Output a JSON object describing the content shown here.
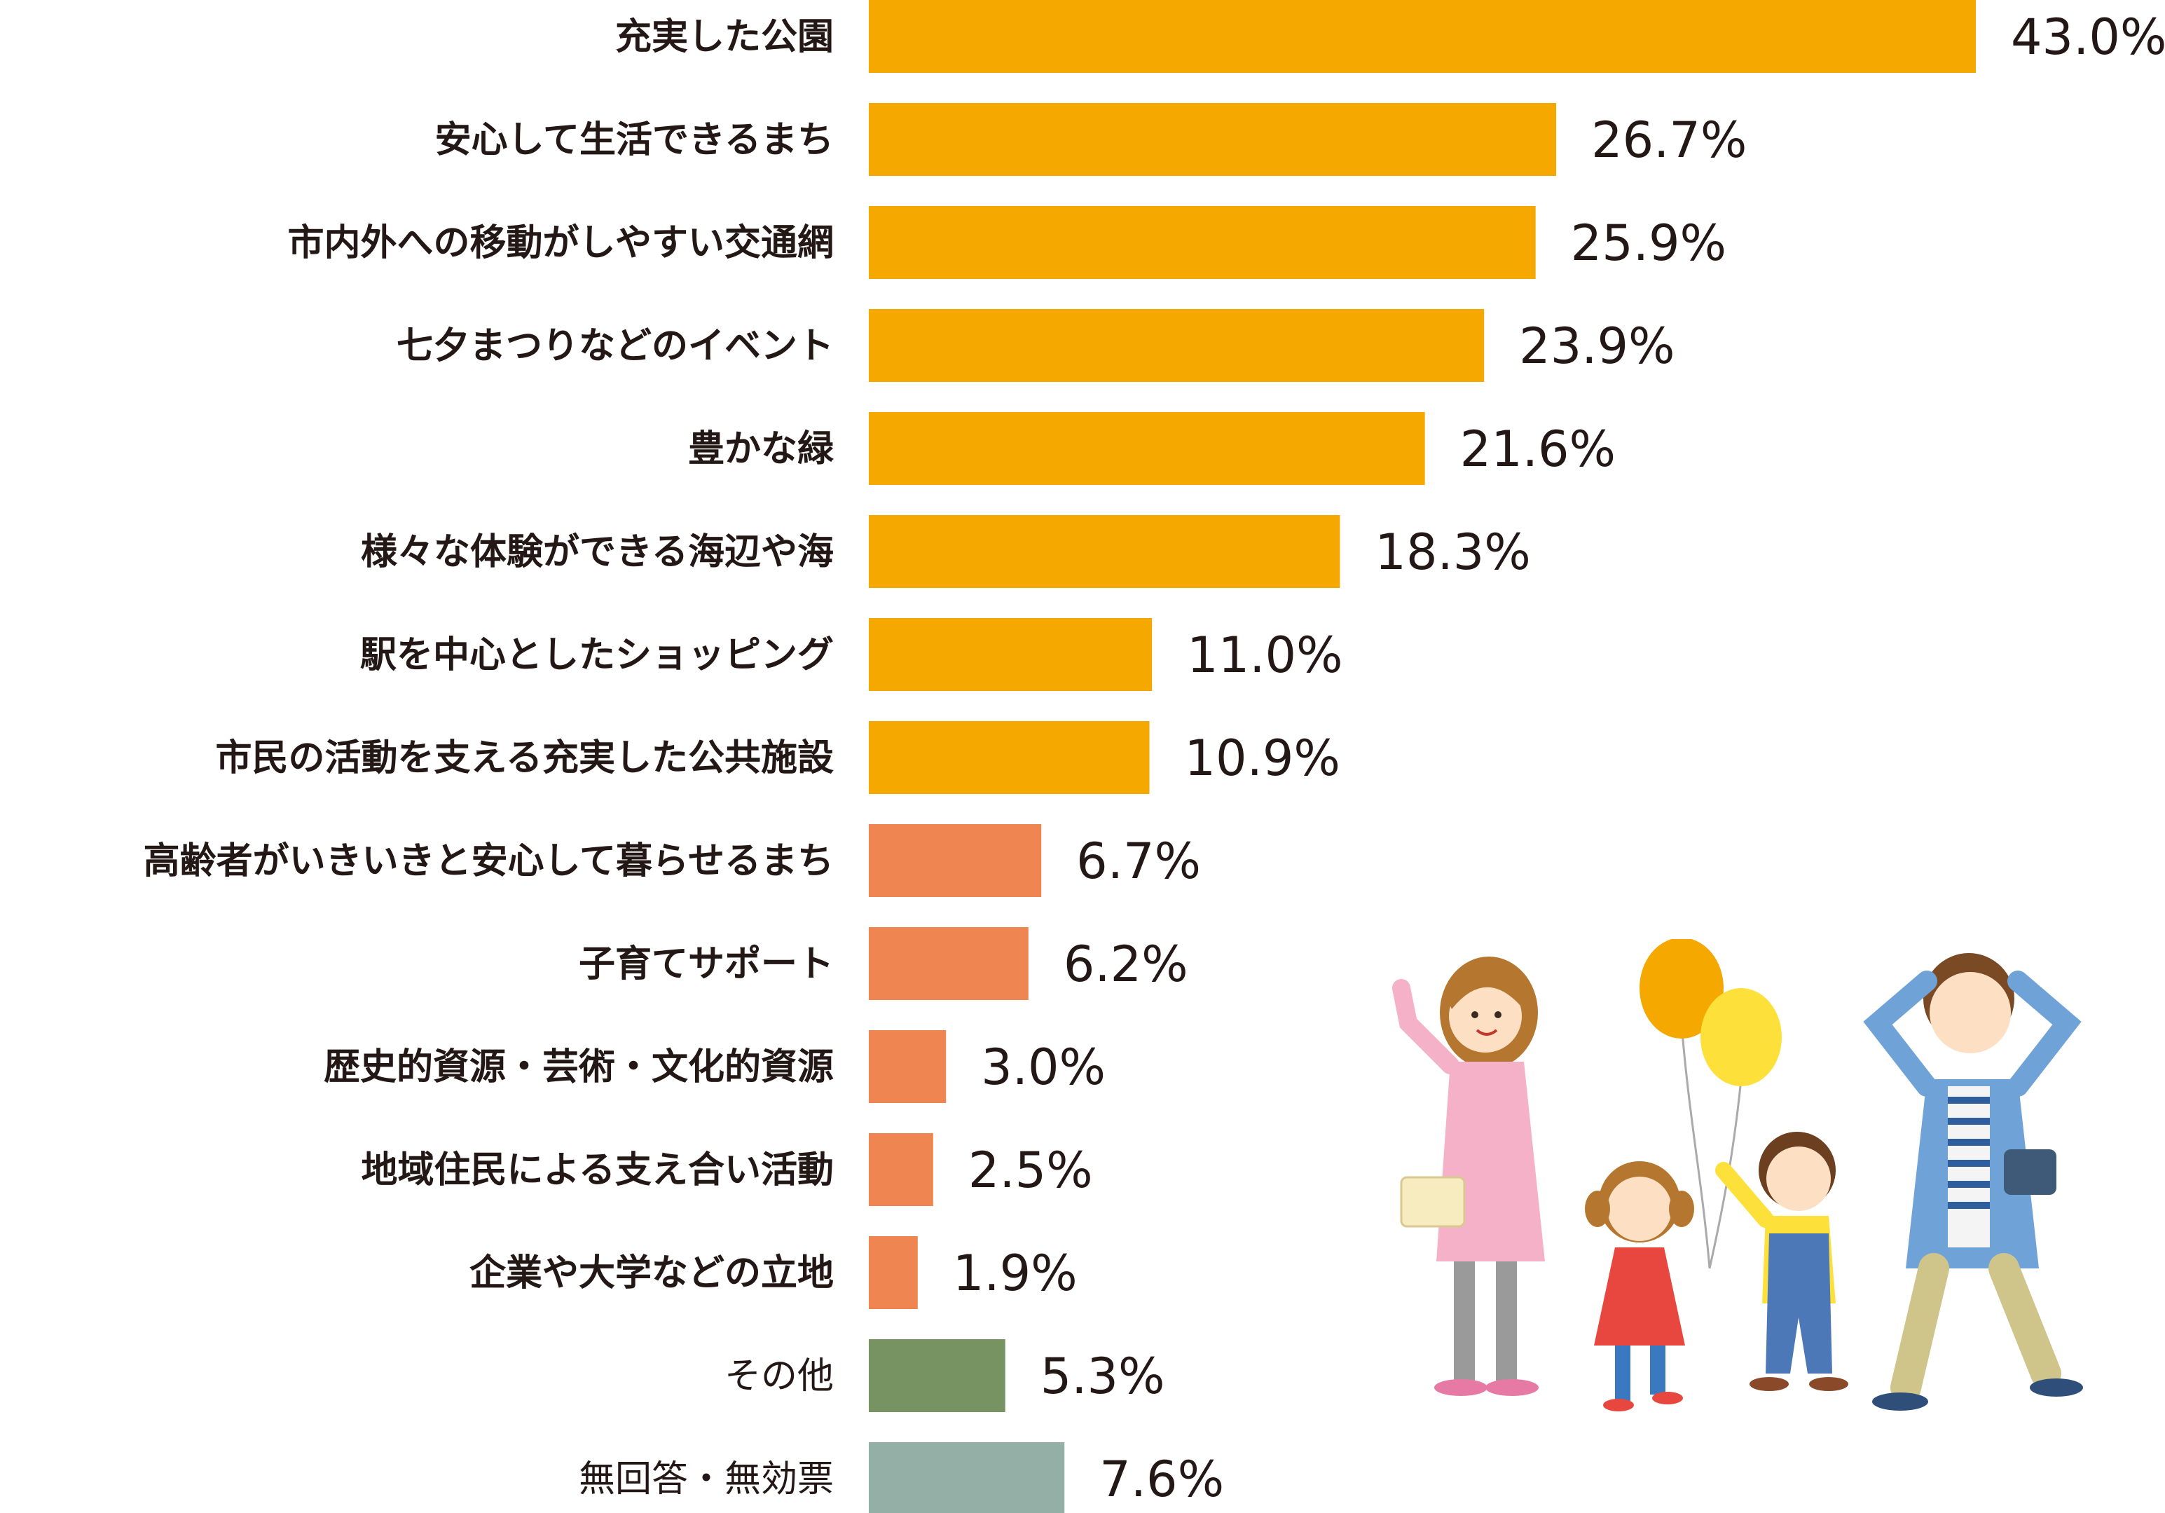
{
  "chart_data": {
    "type": "bar",
    "orientation": "horizontal",
    "categories": [
      "充実した公園",
      "安心して生活できるまち",
      "市内外への移動がしやすい交通網",
      "七夕まつりなどのイベント",
      "豊かな緑",
      "様々な体験ができる海辺や海",
      "駅を中心としたショッピング",
      "市民の活動を支える充実した公共施設",
      "高齢者がいきいきと安心して暮らせるまち",
      "子育てサポート",
      "歴史的資源・芸術・文化的資源",
      "地域住民による支え合い活動",
      "企業や大学などの立地",
      "その他",
      "無回答・無効票"
    ],
    "values": [
      43.0,
      26.7,
      25.9,
      23.9,
      21.6,
      18.3,
      11.0,
      10.9,
      6.7,
      6.2,
      3.0,
      2.5,
      1.9,
      5.3,
      7.6
    ],
    "value_labels": [
      "43.0%",
      "26.7%",
      "25.9%",
      "23.9%",
      "21.6%",
      "18.3%",
      "11.0%",
      "10.9%",
      "6.7%",
      "6.2%",
      "3.0%",
      "2.5%",
      "1.9%",
      "5.3%",
      "7.6%"
    ],
    "bar_colors": [
      "#f5a800",
      "#f5a800",
      "#f5a800",
      "#f5a800",
      "#f5a800",
      "#f5a800",
      "#f5a800",
      "#f5a800",
      "#ef8550",
      "#ef8550",
      "#ef8550",
      "#ef8550",
      "#ef8550",
      "#779361",
      "#94afa6"
    ],
    "xlim": [
      0,
      43.0
    ],
    "grid": false,
    "legend": "none",
    "title": "",
    "xlabel": "",
    "ylabel": ""
  },
  "illustration": {
    "icon": "family-with-balloons-illustration",
    "colors": {
      "balloon_orange": "#f5a800",
      "balloon_yellow": "#fde03a",
      "dress_pink": "#f5b1c8",
      "shirt_blue": "#6fa3d8"
    }
  }
}
